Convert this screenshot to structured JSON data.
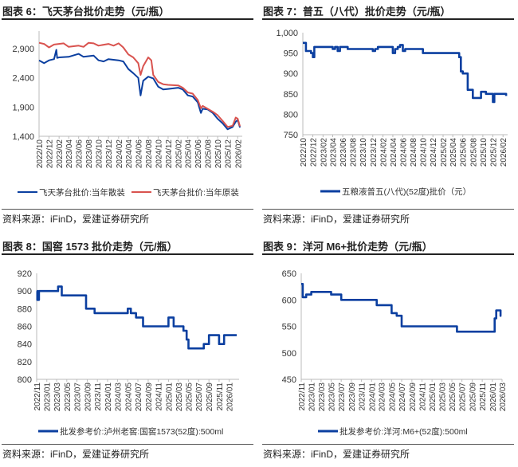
{
  "chart_data": [
    {
      "type": "line",
      "title": "图表 6：飞天茅台批价走势（元/瓶）",
      "source": "资料来源：iFinD，爱建证券研究所",
      "ylim": [
        1400,
        3200
      ],
      "yticks": [
        1400,
        1900,
        2400,
        2900
      ],
      "ytick_labels": [
        "1,400",
        "1,900",
        "2,400",
        "2,900"
      ],
      "xlim": [
        "2022-10-01",
        "2026-03-01"
      ],
      "xtick_labels": [
        "2022/10",
        "2022/12",
        "2023/02",
        "2023/04",
        "2023/06",
        "2023/08",
        "2023/10",
        "2023/12",
        "2024/02",
        "2024/04",
        "2024/06",
        "2024/08",
        "2024/10",
        "2024/12",
        "2025/02",
        "2025/04",
        "2025/06",
        "2025/08",
        "2025/10",
        "2025/12",
        "2026/02"
      ],
      "grid": false,
      "legend": "bottom",
      "series": [
        {
          "name": "飞天茅台批价:当年散装",
          "color": "#0b3fa0",
          "step": false,
          "x": [
            "2022-10-01",
            "2022-11-01",
            "2022-12-01",
            "2023-01-01",
            "2023-01-15",
            "2023-01-20",
            "2023-02-01",
            "2023-04-01",
            "2023-06-01",
            "2023-07-01",
            "2023-09-01",
            "2023-10-01",
            "2023-11-01",
            "2023-12-01",
            "2024-02-01",
            "2024-03-01",
            "2024-04-01",
            "2024-05-01",
            "2024-06-01",
            "2024-06-15",
            "2024-07-01",
            "2024-08-01",
            "2024-09-01",
            "2024-10-01",
            "2024-11-01",
            "2024-12-01",
            "2025-02-01",
            "2025-03-01",
            "2025-04-01",
            "2025-05-01",
            "2025-06-01",
            "2025-06-20",
            "2025-07-01",
            "2025-08-01",
            "2025-09-01",
            "2025-10-01",
            "2025-11-01",
            "2025-12-01",
            "2026-01-01",
            "2026-01-20",
            "2026-02-01",
            "2026-02-15"
          ],
          "y": [
            2700,
            2650,
            2700,
            2720,
            2880,
            2740,
            2750,
            2760,
            2810,
            2760,
            2780,
            2700,
            2680,
            2720,
            2700,
            2680,
            2550,
            2480,
            2400,
            2100,
            2350,
            2420,
            2390,
            2250,
            2200,
            2210,
            2230,
            2200,
            2100,
            2080,
            1980,
            1800,
            1870,
            1860,
            1800,
            1700,
            1620,
            1520,
            1560,
            1650,
            1680,
            1550
          ]
        },
        {
          "name": "飞天茅台批价:当年原装",
          "color": "#d9534f",
          "step": false,
          "x": [
            "2022-10-01",
            "2022-11-01",
            "2022-12-01",
            "2023-01-01",
            "2023-03-01",
            "2023-04-01",
            "2023-06-01",
            "2023-07-01",
            "2023-08-01",
            "2023-09-01",
            "2023-10-01",
            "2023-12-01",
            "2024-01-01",
            "2024-02-01",
            "2024-03-01",
            "2024-04-01",
            "2024-05-01",
            "2024-06-01",
            "2024-06-15",
            "2024-07-01",
            "2024-08-01",
            "2024-08-20",
            "2024-09-01",
            "2024-10-01",
            "2024-11-01",
            "2024-12-01",
            "2025-02-01",
            "2025-03-01",
            "2025-04-01",
            "2025-05-01",
            "2025-06-01",
            "2025-06-20",
            "2025-07-01",
            "2025-09-01",
            "2025-10-01",
            "2025-11-01",
            "2025-12-01",
            "2026-01-01",
            "2026-01-20",
            "2026-02-01",
            "2026-02-15"
          ],
          "y": [
            3000,
            2980,
            2920,
            2970,
            2990,
            2930,
            2950,
            2930,
            3000,
            2990,
            2950,
            2980,
            2950,
            2990,
            2920,
            2800,
            2750,
            2650,
            2450,
            2600,
            2750,
            2700,
            2450,
            2330,
            2290,
            2280,
            2270,
            2230,
            2150,
            2130,
            2020,
            1880,
            1920,
            1820,
            1760,
            1660,
            1560,
            1580,
            1720,
            1700,
            1570
          ]
        }
      ]
    },
    {
      "type": "line",
      "title": "图表 7：普五（八代）批价走势（元/瓶）",
      "source": "资料来源：iFinD，爱建证券研究所",
      "ylim": [
        750,
        1000
      ],
      "yticks": [
        750,
        800,
        850,
        900,
        950,
        1000
      ],
      "ytick_labels": [
        "750",
        "800",
        "850",
        "900",
        "950",
        "1,000"
      ],
      "xlim": [
        "2022-10-01",
        "2026-03-01"
      ],
      "xtick_labels": [
        "2022/10",
        "2022/12",
        "2023/02",
        "2023/04",
        "2023/06",
        "2023/08",
        "2023/10",
        "2023/12",
        "2024/02",
        "2024/04",
        "2024/06",
        "2024/08",
        "2024/10",
        "2024/12",
        "2025/02",
        "2025/04",
        "2025/06",
        "2025/08",
        "2025/10",
        "2025/12",
        "2026/02"
      ],
      "grid": false,
      "legend": "bottom",
      "series": [
        {
          "name": "五粮液普五(八代)(52度)批价（元）",
          "color": "#0b3fa0",
          "step": true,
          "x": [
            "2022-10-01",
            "2022-10-20",
            "2022-11-20",
            "2022-12-01",
            "2022-12-10",
            "2023-04-01",
            "2023-04-15",
            "2023-05-01",
            "2023-05-15",
            "2023-07-01",
            "2023-12-01",
            "2023-12-15",
            "2024-01-01",
            "2024-04-01",
            "2024-04-15",
            "2024-05-01",
            "2024-05-15",
            "2024-06-01",
            "2024-06-15",
            "2024-10-01",
            "2025-05-01",
            "2025-05-10",
            "2025-05-20",
            "2025-06-01",
            "2025-07-01",
            "2025-08-01",
            "2025-09-20",
            "2025-10-20",
            "2025-12-01",
            "2025-12-10",
            "2026-02-15",
            "2026-02-20"
          ],
          "y": [
            975,
            955,
            950,
            940,
            965,
            960,
            965,
            955,
            965,
            960,
            955,
            960,
            965,
            950,
            960,
            965,
            970,
            955,
            960,
            950,
            950,
            940,
            905,
            900,
            860,
            840,
            855,
            850,
            830,
            850,
            850,
            845
          ]
        }
      ]
    },
    {
      "type": "line",
      "title": "图表 8：国窖 1573 批价走势（元/瓶）",
      "source": "资料来源：iFinD，爱建证券研究所",
      "ylim": [
        800,
        920
      ],
      "yticks": [
        800,
        820,
        840,
        860,
        880,
        900,
        920
      ],
      "ytick_labels": [
        "800",
        "820",
        "840",
        "860",
        "880",
        "900",
        "920"
      ],
      "xlim": [
        "2022-11-01",
        "2026-03-01"
      ],
      "xtick_labels": [
        "2022/11",
        "2023/01",
        "2023/03",
        "2023/05",
        "2023/07",
        "2023/09",
        "2023/11",
        "2024/01",
        "2024/03",
        "2024/05",
        "2024/07",
        "2024/09",
        "2024/11",
        "2025/01",
        "2025/03",
        "2025/05",
        "2025/07",
        "2025/09",
        "2025/11",
        "2026/01"
      ],
      "grid": false,
      "legend": "bottom",
      "series": [
        {
          "name": "批发参考价:泸州老窖:国窖1573(52度):500ml",
          "color": "#0b3fa0",
          "step": true,
          "x": [
            "2022-11-01",
            "2022-11-05",
            "2022-11-15",
            "2023-03-10",
            "2023-04-01",
            "2023-08-25",
            "2023-10-15",
            "2024-05-01",
            "2024-05-20",
            "2024-06-20",
            "2024-08-01",
            "2025-01-01",
            "2025-02-01",
            "2025-04-01",
            "2025-04-20",
            "2025-05-01",
            "2025-08-01",
            "2025-09-01",
            "2025-11-01",
            "2025-12-01",
            "2026-02-15"
          ],
          "y": [
            900,
            890,
            900,
            905,
            895,
            880,
            875,
            880,
            875,
            870,
            860,
            870,
            860,
            855,
            845,
            835,
            840,
            850,
            840,
            850,
            850
          ]
        }
      ]
    },
    {
      "type": "line",
      "title": "图表 9：洋河 M6+批价走势（元/瓶）",
      "source": "资料来源：iFinD，爱建证券研究所",
      "ylim": [
        450,
        650
      ],
      "yticks": [
        450,
        500,
        550,
        600,
        650
      ],
      "ytick_labels": [
        "450",
        "500",
        "550",
        "600",
        "650"
      ],
      "xlim": [
        "2022-11-01",
        "2026-03-01"
      ],
      "xtick_labels": [
        "2022/11",
        "2023/01",
        "2023/03",
        "2023/05",
        "2023/07",
        "2023/09",
        "2023/11",
        "2024/01",
        "2024/03",
        "2024/05",
        "2024/07",
        "2024/09",
        "2024/11",
        "2025/01",
        "2025/03",
        "2025/05",
        "2025/07",
        "2025/09",
        "2025/11",
        "2026/01",
        "2026/03"
      ],
      "grid": false,
      "legend": "bottom",
      "series": [
        {
          "name": "批发参考价:洋河:M6+(52度):500ml",
          "color": "#0b3fa0",
          "step": true,
          "x": [
            "2022-11-01",
            "2022-11-10",
            "2022-12-01",
            "2023-01-01",
            "2023-05-01",
            "2023-07-01",
            "2024-02-01",
            "2024-05-01",
            "2024-06-01",
            "2024-07-01",
            "2025-06-01",
            "2026-01-15",
            "2026-01-25",
            "2026-02-20",
            "2026-02-25"
          ],
          "y": [
            630,
            605,
            610,
            615,
            610,
            600,
            590,
            575,
            570,
            550,
            540,
            565,
            580,
            570,
            570
          ]
        }
      ]
    }
  ]
}
